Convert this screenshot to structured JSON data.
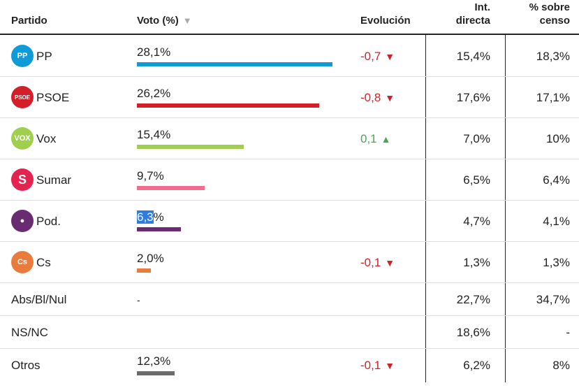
{
  "header": {
    "partido": "Partido",
    "voto": "Voto (%)",
    "evolucion": "Evolución",
    "int_line1": "Int.",
    "int_line2": "directa",
    "censo_line1": "% sobre",
    "censo_line2": "censo"
  },
  "rows": [
    {
      "party": "PP",
      "logo": "pp-logo-icon",
      "logo_text": "PP",
      "color": "#0f9bd7",
      "vote": "28,1%",
      "vote_value": 28.1,
      "evo": "-0,7",
      "evo_dir": "down",
      "int": "15,4%",
      "censo": "18,3%"
    },
    {
      "party": "PSOE",
      "logo": "psoe-logo-icon",
      "logo_text": "PSOE",
      "color": "#d21f2a",
      "vote": "26,2%",
      "vote_value": 26.2,
      "evo": "-0,8",
      "evo_dir": "down",
      "int": "17,6%",
      "censo": "17,1%"
    },
    {
      "party": "Vox",
      "logo": "vox-logo-icon",
      "logo_text": "VOX",
      "color": "#9fcf4d",
      "vote": "15,4%",
      "vote_value": 15.4,
      "evo": "0,1",
      "evo_dir": "up",
      "int": "7,0%",
      "censo": "10%"
    },
    {
      "party": "Sumar",
      "logo": "sumar-logo-icon",
      "logo_text": "S",
      "color": "#f26c8f",
      "logo_color": "#e5234f",
      "vote": "9,7%",
      "vote_value": 9.7,
      "evo": "",
      "evo_dir": "",
      "int": "6,5%",
      "censo": "6,4%"
    },
    {
      "party": "Pod.",
      "logo": "podemos-logo-icon",
      "logo_text": "●",
      "color": "#6a2c70",
      "logo_color": "#6a2c70",
      "vote_a": "6,3",
      "vote_b": "%",
      "vote_value": 6.3,
      "evo": "",
      "evo_dir": "",
      "int": "4,7%",
      "censo": "4,1%"
    },
    {
      "party": "Cs",
      "logo": "cs-logo-icon",
      "logo_text": "Cs",
      "color": "#e97b3d",
      "vote": "2,0%",
      "vote_value": 2.0,
      "evo": "-0,1",
      "evo_dir": "down",
      "int": "1,3%",
      "censo": "1,3%"
    }
  ],
  "other_rows": [
    {
      "label": "Abs/Bl/Nul",
      "vote": "-",
      "int": "22,7%",
      "censo": "34,7%"
    },
    {
      "label": "NS/NC",
      "vote": "",
      "int": "18,6%",
      "censo": "-"
    },
    {
      "label": "Otros",
      "vote": "12,3%",
      "vote_value": 12.3,
      "color": "#6b6b6b",
      "evo": "-0,1",
      "evo_dir": "down",
      "int": "6,2%",
      "censo": "8%"
    }
  ],
  "arrows": {
    "down": "▼",
    "up": "▲"
  }
}
